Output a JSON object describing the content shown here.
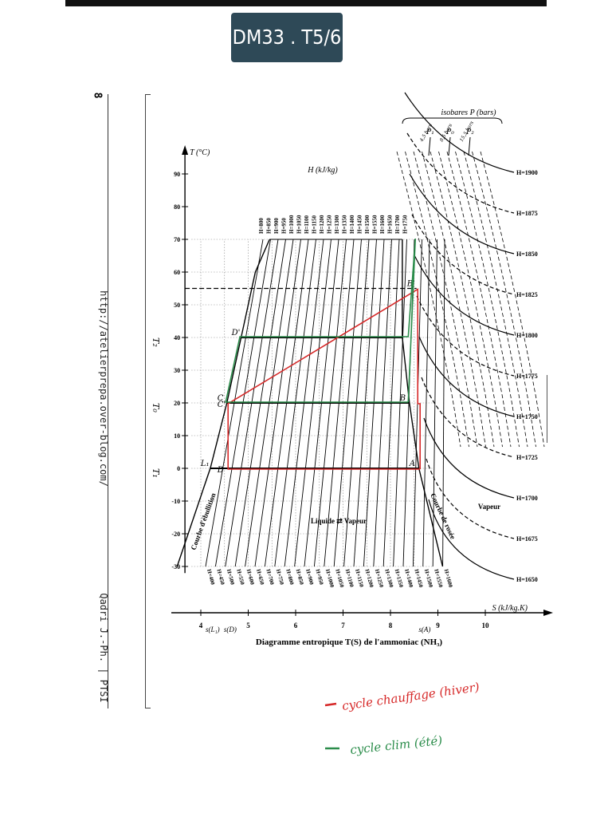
{
  "header": {
    "badge": "DM33 . T5/6"
  },
  "page": {
    "number": "8",
    "url": "http://atelierprepa.over-blog.com/",
    "author": "Qadri J.-Ph. | PTSI"
  },
  "chart_data": {
    "type": "line",
    "title": "Diagramme entropique T(S) de l'ammoniac (NH₃)",
    "xlabel": "S (kJ/kg.K)",
    "ylabel": "T (°C)",
    "enthalpy_label": "H (kJ/kg)",
    "isobars_label": "isobares P (bars)",
    "x_ticks": [
      "4",
      "5",
      "6",
      "7",
      "8",
      "9",
      "10"
    ],
    "x_marks": [
      "s(L₁)",
      "s(D)",
      "s(A)"
    ],
    "y_ticks": [
      "90",
      "80",
      "70",
      "60",
      "50",
      "40",
      "30",
      "20",
      "10",
      "0",
      "-10",
      "-20",
      "-30"
    ],
    "y_marks": [
      "T₂",
      "T₀",
      "T₁"
    ],
    "xlim": [
      3.8,
      10.7
    ],
    "ylim": [
      -30,
      90
    ],
    "saturation_liquid": {
      "label": "Courbe d'ébullition",
      "x": [
        3.5,
        4.2,
        4.55,
        4.85,
        5.15,
        5.45
      ],
      "y": [
        -30,
        0,
        20,
        40,
        60,
        70
      ]
    },
    "saturation_vapor": {
      "label": "Courbe de rosée",
      "x": [
        9.1,
        8.6,
        8.4,
        8.25,
        8.25
      ],
      "y": [
        -30,
        0,
        20,
        40,
        70
      ]
    },
    "isenthalps_left": [
      "H=400",
      "H=450",
      "H=500",
      "H=550",
      "H=600",
      "H=650",
      "H=700",
      "H=750",
      "H=800",
      "H=850",
      "H=900",
      "H=950",
      "H=1000",
      "H=1050",
      "H=1100",
      "H=1150",
      "H=1200",
      "H=1250",
      "H=1300",
      "H=1350",
      "H=1400",
      "H=1450",
      "H=1500",
      "H=1550",
      "H=1600"
    ],
    "isenthalps_top": [
      "H=800",
      "H=850",
      "H=900",
      "H=950",
      "H=1000",
      "H=1050",
      "H=1100",
      "H=1150",
      "H=1200",
      "H=1250",
      "H=1300",
      "H=1350",
      "H=1400",
      "H=1450",
      "H=1500",
      "H=1550",
      "H=1600",
      "H=1650",
      "H=1700",
      "H=1750"
    ],
    "isenthalps_right": [
      "H=1900",
      "H=1875",
      "H=1850",
      "H=1825",
      "H=1800",
      "H=1775",
      "H=1750",
      "H=1725",
      "H=1700",
      "H=1675",
      "H=1650"
    ],
    "isobars": [
      {
        "name": "P₁",
        "value": "4,5 bars"
      },
      {
        "name": "P₀",
        "value": "8,5 bars"
      },
      {
        "name": "P₂",
        "value": "15,5 bars"
      }
    ],
    "region_label": "Liquide ⇄ Vapeur",
    "vapor_label": "Vapeur",
    "points": [
      {
        "name": "D'",
        "x": 4.85,
        "y": 40
      },
      {
        "name": "C",
        "x": 4.55,
        "y": 20
      },
      {
        "name": "C'",
        "x": 4.55,
        "y": 18
      },
      {
        "name": "L₁",
        "x": 4.2,
        "y": 0
      },
      {
        "name": "D",
        "x": 4.55,
        "y": -2
      },
      {
        "name": "B",
        "x": 8.4,
        "y": 20
      },
      {
        "name": "A",
        "x": 8.6,
        "y": 0
      },
      {
        "name": "B'",
        "x": 8.55,
        "y": 55
      }
    ],
    "cycles": [
      {
        "name": "cycle chauffage (hiver)",
        "color": "#d62828",
        "x": [
          8.6,
          8.6,
          8.55,
          8.55,
          4.55,
          4.55,
          8.6
        ],
        "y": [
          0,
          20,
          20,
          55,
          20,
          0,
          0
        ]
      },
      {
        "name": "cycle clim (été)",
        "color": "#2a8c4a",
        "x": [
          8.4,
          8.55,
          8.4,
          4.85,
          4.55,
          4.55,
          8.4
        ],
        "y": [
          20,
          70,
          40,
          40,
          20,
          20,
          20
        ]
      }
    ],
    "grid": true
  },
  "legend": {
    "heating": "cycle chauffage (hiver)",
    "cooling": "cycle clim (été)"
  },
  "colors": {
    "heating": "#d62828",
    "cooling": "#2a8c4a",
    "badge": "#2e4957"
  }
}
